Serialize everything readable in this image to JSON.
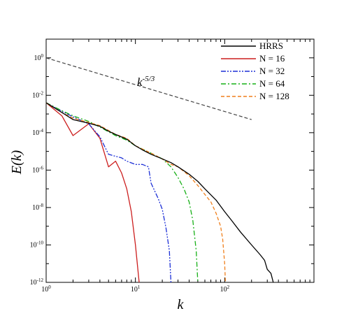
{
  "chart_data": {
    "type": "line",
    "x_scale": "log",
    "y_scale": "log",
    "xlim": [
      1,
      1000
    ],
    "ylim": [
      1e-12,
      10
    ],
    "xlabel": "k",
    "ylabel": "E(k)",
    "x_ticks": [
      {
        "value": 1,
        "label": "10",
        "exp": "0"
      },
      {
        "value": 10,
        "label": "10",
        "exp": "1"
      },
      {
        "value": 100,
        "label": "10",
        "exp": "2"
      }
    ],
    "y_ticks": [
      {
        "value": 1,
        "label": "10",
        "exp": "0"
      },
      {
        "value": 0.01,
        "label": "10",
        "exp": "-2"
      },
      {
        "value": 0.0001,
        "label": "10",
        "exp": "-4"
      },
      {
        "value": 1e-06,
        "label": "10",
        "exp": "-6"
      },
      {
        "value": 1e-08,
        "label": "10",
        "exp": "-8"
      },
      {
        "value": 1e-10,
        "label": "10",
        "exp": "-10"
      },
      {
        "value": 1e-12,
        "label": "10",
        "exp": "-12"
      }
    ],
    "grid": false,
    "legend_position": "top-right",
    "annotation": {
      "base": "k",
      "exp": "-5/3"
    },
    "series": [
      {
        "name": "HRRS",
        "color": "#000000",
        "dash": "solid",
        "points": [
          [
            1,
            0.004
          ],
          [
            1.5,
            0.0012
          ],
          [
            2,
            0.0005
          ],
          [
            3,
            0.00032
          ],
          [
            4,
            0.00022
          ],
          [
            5,
            0.00012
          ],
          [
            6,
            8e-05
          ],
          [
            8,
            4.5e-05
          ],
          [
            10,
            2e-05
          ],
          [
            12,
            1.2e-05
          ],
          [
            15,
            7e-06
          ],
          [
            20,
            4e-06
          ],
          [
            25,
            2.5e-06
          ],
          [
            30,
            1.5e-06
          ],
          [
            40,
            6e-07
          ],
          [
            50,
            2.5e-07
          ],
          [
            60,
            1e-07
          ],
          [
            80,
            2.5e-08
          ],
          [
            100,
            6e-09
          ],
          [
            120,
            2e-09
          ],
          [
            150,
            5e-10
          ],
          [
            200,
            1e-10
          ],
          [
            250,
            3e-11
          ],
          [
            280,
            1.5e-11
          ],
          [
            300,
            5e-12
          ],
          [
            330,
            3e-12
          ],
          [
            350,
            1e-12
          ]
        ]
      },
      {
        "name": "N = 16",
        "color": "#cc1f1f",
        "dash": "solid",
        "points": [
          [
            1,
            0.004
          ],
          [
            1.5,
            0.0008
          ],
          [
            2,
            7e-05
          ],
          [
            3,
            0.0003
          ],
          [
            4,
            5e-05
          ],
          [
            5,
            1.5e-06
          ],
          [
            6,
            3e-06
          ],
          [
            7,
            7e-07
          ],
          [
            8,
            1e-07
          ],
          [
            9,
            6e-09
          ],
          [
            10,
            1e-10
          ],
          [
            11,
            1e-12
          ]
        ]
      },
      {
        "name": "N = 32",
        "color": "#1c2fd6",
        "dash": "dashdotdot",
        "points": [
          [
            1,
            0.004
          ],
          [
            1.5,
            0.0014
          ],
          [
            2,
            0.0007
          ],
          [
            3,
            0.0003
          ],
          [
            4,
            6e-05
          ],
          [
            5,
            7e-06
          ],
          [
            6,
            5.5e-06
          ],
          [
            7,
            4.5e-06
          ],
          [
            8,
            3e-06
          ],
          [
            10,
            2e-06
          ],
          [
            12,
            2e-06
          ],
          [
            14,
            1.5e-06
          ],
          [
            15,
            2e-07
          ],
          [
            18,
            3e-08
          ],
          [
            20,
            8e-09
          ],
          [
            22,
            8e-10
          ],
          [
            24,
            5e-11
          ],
          [
            25,
            1e-12
          ]
        ]
      },
      {
        "name": "N = 64",
        "color": "#17b017",
        "dash": "dashdot",
        "points": [
          [
            1,
            0.004
          ],
          [
            1.5,
            0.0015
          ],
          [
            2,
            0.0008
          ],
          [
            3,
            0.0004
          ],
          [
            4,
            0.0002
          ],
          [
            6,
            7e-05
          ],
          [
            8,
            4e-05
          ],
          [
            10,
            2e-05
          ],
          [
            15,
            8e-06
          ],
          [
            20,
            4e-06
          ],
          [
            25,
            1.5e-06
          ],
          [
            30,
            4e-07
          ],
          [
            35,
            1e-07
          ],
          [
            40,
            2e-08
          ],
          [
            44,
            2e-09
          ],
          [
            48,
            5e-11
          ],
          [
            50,
            1e-12
          ]
        ]
      },
      {
        "name": "N = 128",
        "color": "#f07f1c",
        "dash": "dashed",
        "points": [
          [
            1,
            0.004
          ],
          [
            1.5,
            0.0012
          ],
          [
            2,
            0.0006
          ],
          [
            3,
            0.00035
          ],
          [
            4,
            0.00024
          ],
          [
            6,
            8e-05
          ],
          [
            8,
            5e-05
          ],
          [
            10,
            2e-05
          ],
          [
            15,
            8e-06
          ],
          [
            20,
            4e-06
          ],
          [
            25,
            2e-06
          ],
          [
            30,
            1.5e-06
          ],
          [
            40,
            5e-07
          ],
          [
            50,
            1.5e-07
          ],
          [
            60,
            5e-08
          ],
          [
            70,
            2e-08
          ],
          [
            80,
            5e-09
          ],
          [
            90,
            1e-09
          ],
          [
            95,
            2e-10
          ],
          [
            100,
            1e-11
          ],
          [
            102,
            1e-12
          ]
        ]
      }
    ],
    "reference_line": {
      "color": "#444444",
      "dash": "dashed",
      "points": [
        [
          1,
          1
        ],
        [
          200,
          0.0005
        ]
      ]
    }
  }
}
